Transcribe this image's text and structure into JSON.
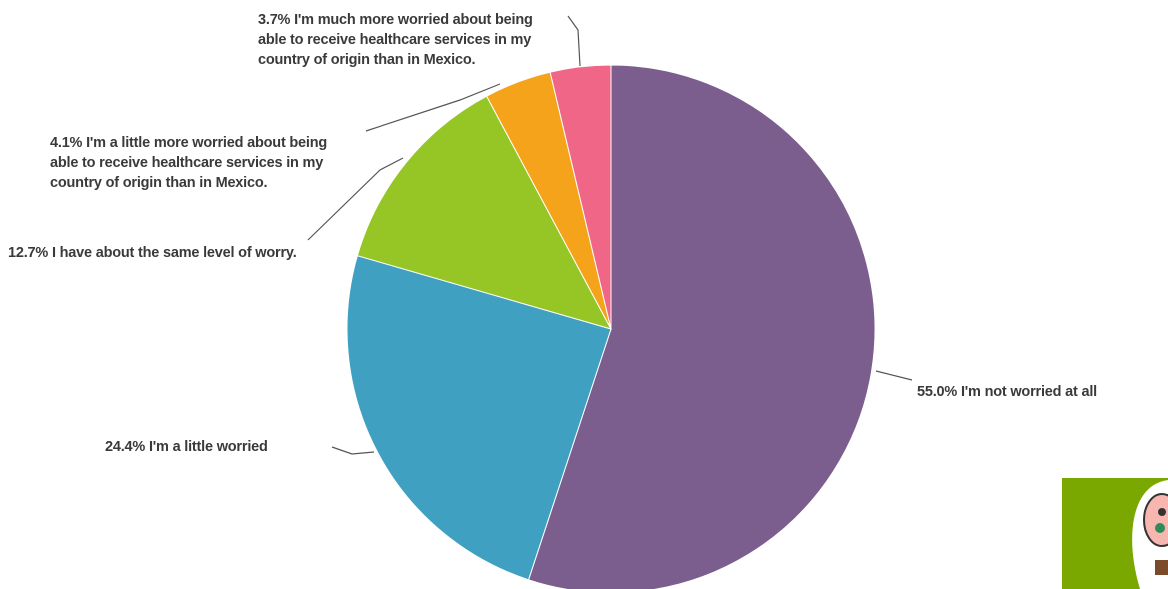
{
  "chart_data": {
    "type": "pie",
    "categories": [
      "I'm not worried at all",
      "I'm a little worried",
      "I have about the same level of worry.",
      "I'm a little more worried about being able to receive healthcare services in my country of origin than in Mexico.",
      "I'm much more worried about being able to receive healthcare services in my country of origin than in Mexico."
    ],
    "values": [
      55.0,
      24.4,
      12.7,
      4.1,
      3.7
    ],
    "value_labels": [
      "55.0%",
      "24.4%",
      "12.7%",
      "4.1%",
      "3.7%"
    ],
    "colors": [
      "#7b5e8e",
      "#3fa0c1",
      "#95c626",
      "#f5a31a",
      "#ef6687"
    ]
  }
}
